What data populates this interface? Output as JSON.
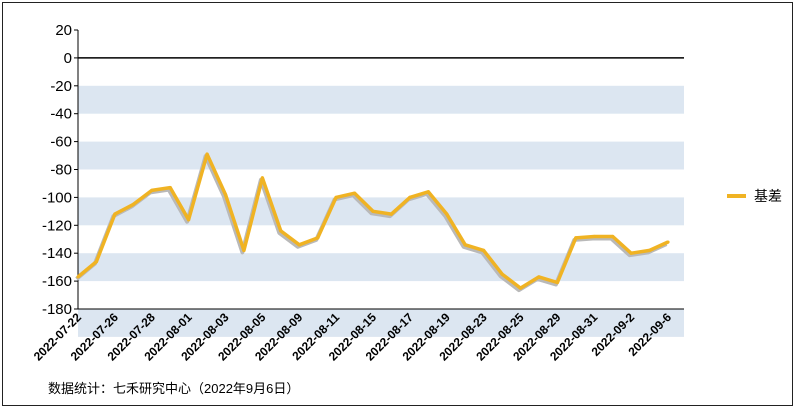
{
  "chart_data": {
    "type": "line",
    "title": "",
    "xlabel": "",
    "ylabel": "",
    "ylim": [
      -180,
      20
    ],
    "yticks": [
      20,
      0,
      -20,
      -40,
      -60,
      -80,
      -100,
      -120,
      -140,
      -160,
      -180
    ],
    "x_tick_labels": [
      "2022-07-22",
      "2022-07-26",
      "2022-07-28",
      "2022-08-01",
      "2022-08-03",
      "2022-08-05",
      "2022-08-09",
      "2022-08-11",
      "2022-08-15",
      "2022-08-17",
      "2022-08-19",
      "2022-08-23",
      "2022-08-25",
      "2022-08-29",
      "2022-08-31",
      "2022-09-2",
      "2022-09-6"
    ],
    "grid": "alternating horizontal bands",
    "legend_position": "right",
    "series": [
      {
        "name": "基差",
        "color": "#f0b323",
        "values": [
          -157,
          -146,
          -112,
          -105,
          -95,
          -93,
          -116,
          -69,
          -98,
          -138,
          -86,
          -124,
          -134,
          -129,
          -100,
          -97,
          -110,
          -112,
          -100,
          -96,
          -112,
          -134,
          -138,
          -155,
          -165,
          -157,
          -161,
          -129,
          -128,
          -128,
          -140,
          -138,
          -132
        ]
      }
    ]
  },
  "source_note": "数据统计：七禾研究中心（2022年9月6日）"
}
